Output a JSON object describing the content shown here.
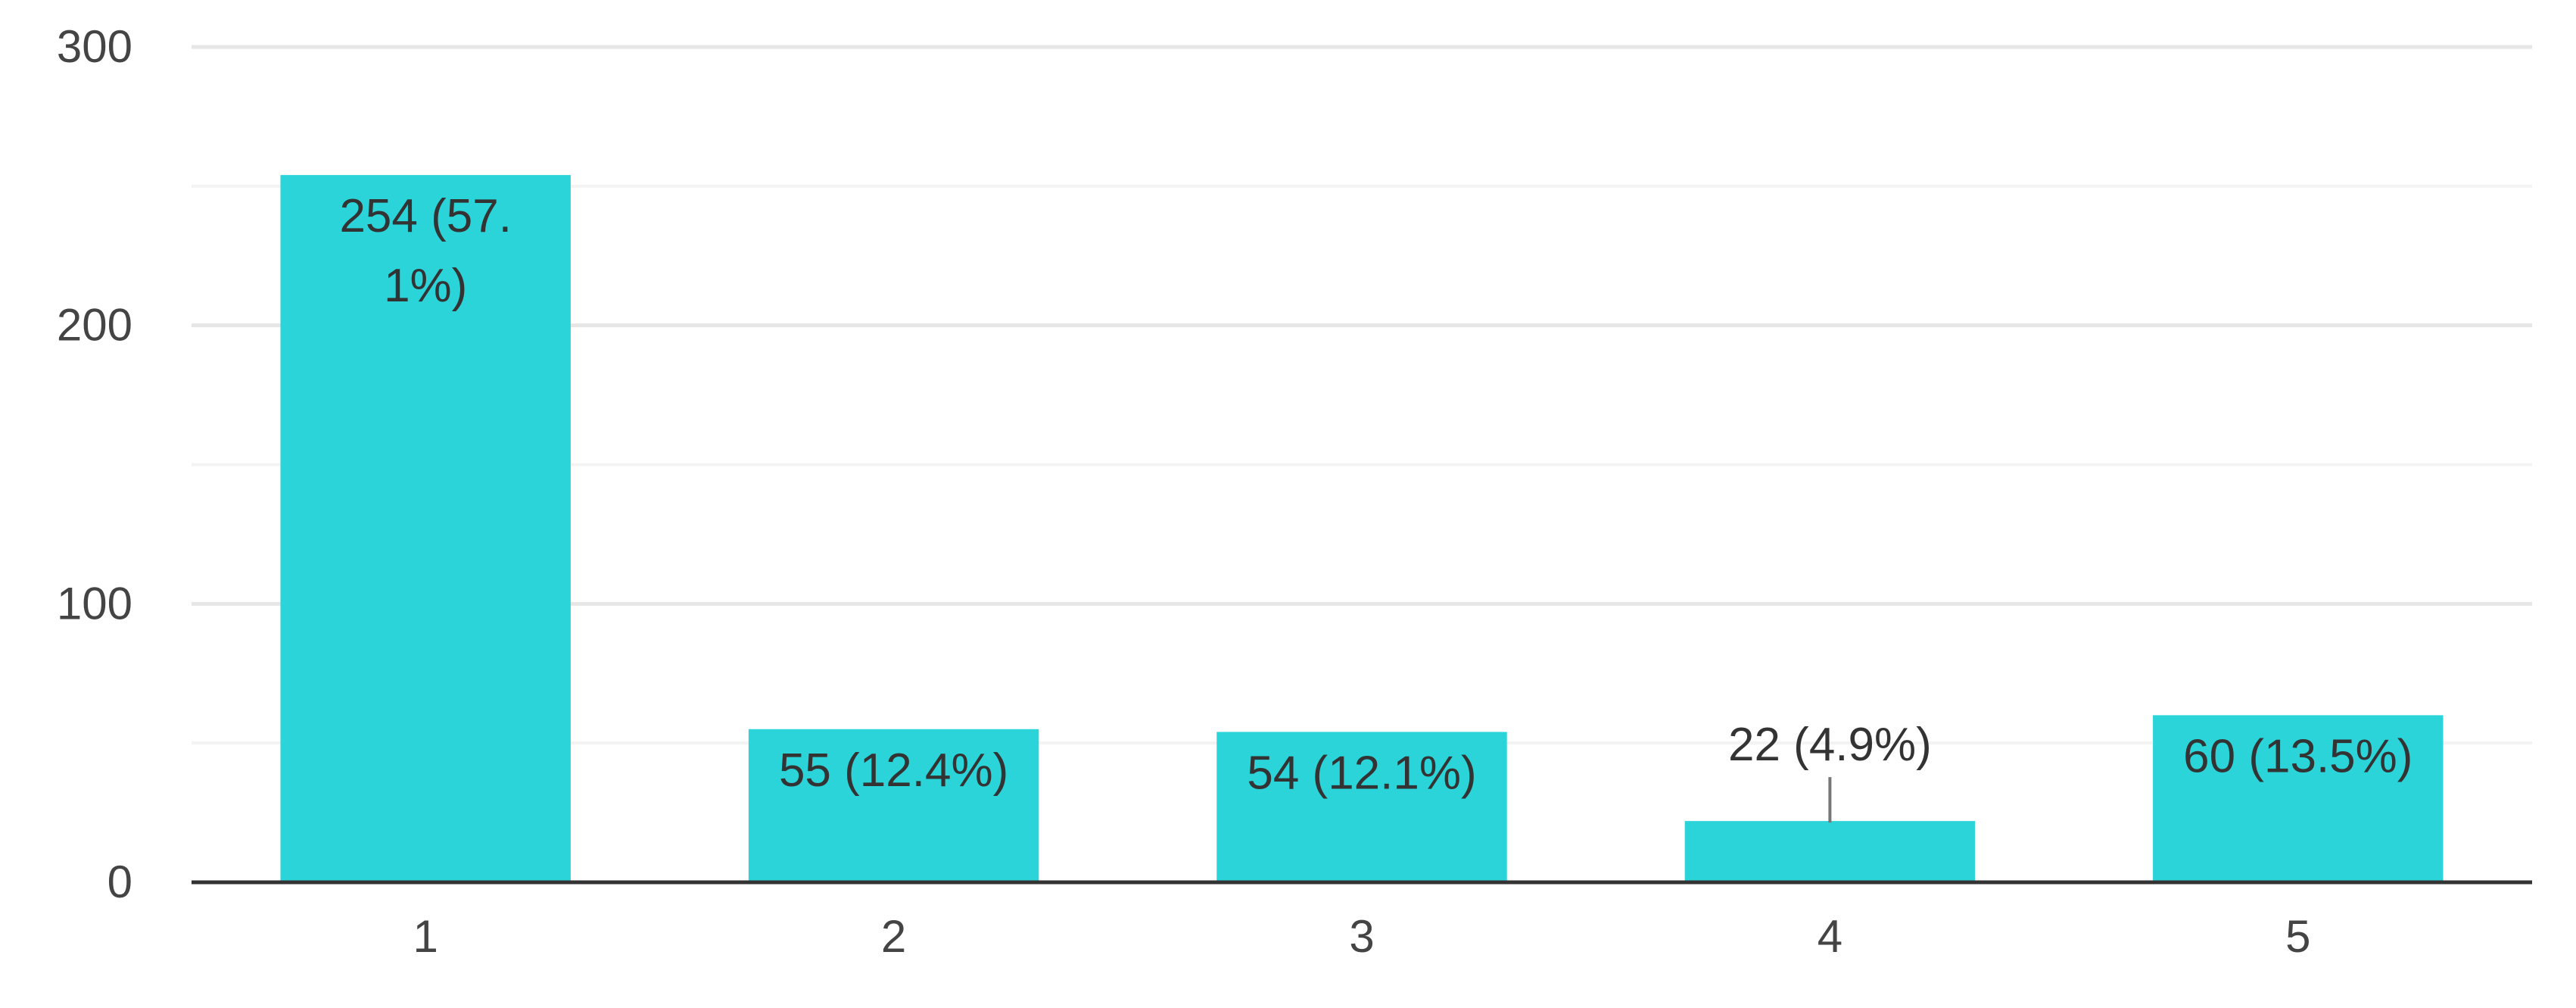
{
  "chart_data": {
    "type": "bar",
    "categories": [
      "1",
      "2",
      "3",
      "4",
      "5"
    ],
    "values": [
      254,
      55,
      54,
      22,
      60
    ],
    "data_labels": [
      [
        "254 (57.",
        "1%)"
      ],
      [
        "55 (12.4%)"
      ],
      [
        "54 (12.1%)"
      ],
      [
        "22 (4.9%)"
      ],
      [
        "60 (13.5%)"
      ]
    ],
    "label_outside": [
      false,
      false,
      false,
      true,
      false
    ],
    "y_ticks": [
      0,
      100,
      200,
      300
    ],
    "ylim": [
      0,
      300
    ],
    "grid": true,
    "title": "",
    "xlabel": "",
    "ylabel": "",
    "colors": {
      "bar": "#2ad4d9"
    }
  }
}
